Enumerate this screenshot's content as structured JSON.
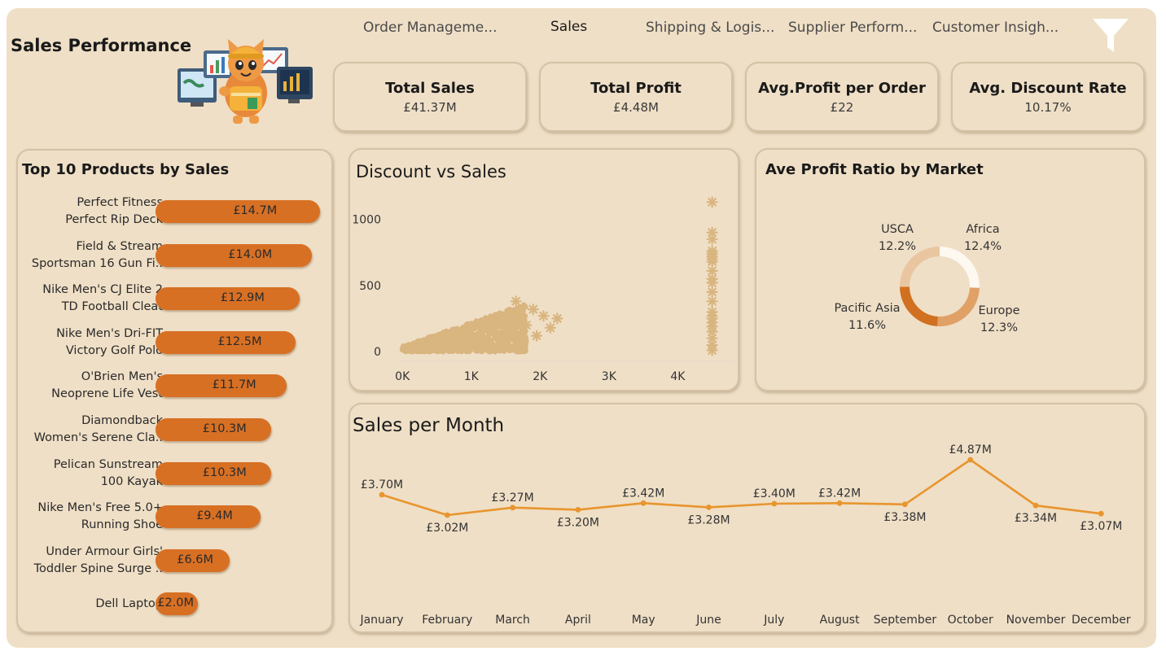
{
  "header": {
    "title": "Sales Performance",
    "tabs": [
      {
        "label": "Order Manageme..."
      },
      {
        "label": "Sales"
      },
      {
        "label": "Shipping & Logis..."
      },
      {
        "label": "Supplier Perform..."
      },
      {
        "label": "Customer Insigh..."
      }
    ],
    "active_tab": "Sales",
    "filter_icon": "filter-icon",
    "mascot_icon": "cat-analyst-illustration"
  },
  "kpis": [
    {
      "label": "Total Sales",
      "value": "£41.37M"
    },
    {
      "label": "Total Profit",
      "value": "£4.48M"
    },
    {
      "label": "Avg.Profit per Order",
      "value": "£22"
    },
    {
      "label": "Avg. Discount Rate",
      "value": "10.17%"
    }
  ],
  "colors": {
    "background": "#efdfc6",
    "bar": "#d87024",
    "scatter": "#d9b57f",
    "line": "#e8952e",
    "donut": [
      "#fdf8f0",
      "#e0a066",
      "#d07020",
      "#e9c6a0"
    ]
  },
  "chart_data": [
    {
      "type": "bar",
      "title": "Top 10 Products by Sales",
      "orientation": "horizontal",
      "categories": [
        [
          "Perfect Fitness",
          "Perfect Rip Deck"
        ],
        [
          "Field & Stream",
          "Sportsman 16 Gun Fi.."
        ],
        [
          "Nike Men's CJ Elite 2",
          "TD Football Cleat"
        ],
        [
          "Nike Men's Dri-FIT",
          "Victory Golf Polo"
        ],
        [
          "O'Brien Men's",
          "Neoprene Life Vest"
        ],
        [
          "Diamondback",
          "Women's Serene Cla.."
        ],
        [
          "Pelican Sunstream",
          "100 Kayak"
        ],
        [
          "Nike Men's Free 5.0+",
          "Running Shoe"
        ],
        [
          "Under Armour Girls'",
          "Toddler Spine Surge .."
        ],
        [
          "Dell Laptop"
        ]
      ],
      "values": [
        14.7,
        14.0,
        12.9,
        12.5,
        11.7,
        10.3,
        10.3,
        9.4,
        6.6,
        2.0
      ],
      "labels": [
        "£14.7M",
        "£14.0M",
        "£12.9M",
        "£12.5M",
        "£11.7M",
        "£10.3M",
        "£10.3M",
        "£9.4M",
        "£6.6M",
        "£2.0M"
      ],
      "unit": "£M"
    },
    {
      "type": "scatter",
      "title": "Discount vs Sales",
      "xlim": [
        -50,
        4800
      ],
      "ylim": [
        -30,
        1150
      ],
      "xticks": [
        0,
        1000,
        2000,
        3000,
        4000
      ],
      "xtick_labels": [
        "0K",
        "1K",
        "2K",
        "3K",
        "4K"
      ],
      "yticks": [
        0,
        500,
        1000
      ],
      "ytick_labels": [
        "0",
        "500",
        "1000"
      ],
      "marker": "asterisk",
      "main_cloud": {
        "x_range": [
          0,
          2500
        ],
        "y_range": [
          0,
          400
        ]
      },
      "outlier_points": [
        {
          "x": 4500,
          "y": 1130
        },
        {
          "x": 4500,
          "y": 900
        },
        {
          "x": 4500,
          "y": 850
        },
        {
          "x": 4500,
          "y": 760
        },
        {
          "x": 4500,
          "y": 740
        },
        {
          "x": 4500,
          "y": 720
        },
        {
          "x": 4500,
          "y": 700
        },
        {
          "x": 4500,
          "y": 680
        },
        {
          "x": 4500,
          "y": 610
        },
        {
          "x": 4500,
          "y": 550
        },
        {
          "x": 4500,
          "y": 520
        },
        {
          "x": 4500,
          "y": 450
        },
        {
          "x": 4500,
          "y": 380
        },
        {
          "x": 4500,
          "y": 300
        },
        {
          "x": 4500,
          "y": 270
        },
        {
          "x": 4500,
          "y": 250
        },
        {
          "x": 4500,
          "y": 220
        },
        {
          "x": 4500,
          "y": 190
        },
        {
          "x": 4500,
          "y": 150
        },
        {
          "x": 4500,
          "y": 100
        },
        {
          "x": 4500,
          "y": 50
        },
        {
          "x": 4500,
          "y": 10
        },
        {
          "x": 1650,
          "y": 380
        },
        {
          "x": 1900,
          "y": 320
        },
        {
          "x": 2050,
          "y": 270
        },
        {
          "x": 2250,
          "y": 250
        },
        {
          "x": 1800,
          "y": 200
        },
        {
          "x": 2150,
          "y": 180
        },
        {
          "x": 1950,
          "y": 120
        },
        {
          "x": 1750,
          "y": 60
        },
        {
          "x": 1350,
          "y": 20
        }
      ]
    },
    {
      "type": "pie",
      "title": "Ave Profit Ratio by Market",
      "donut": true,
      "categories": [
        "Africa",
        "Europe",
        "Pacific Asia",
        "USCA"
      ],
      "values": [
        12.4,
        12.3,
        11.6,
        12.2
      ],
      "labels": [
        "12.4%",
        "12.3%",
        "11.6%",
        "12.2%"
      ]
    },
    {
      "type": "line",
      "title": "Sales per Month",
      "categories": [
        "January",
        "February",
        "March",
        "April",
        "May",
        "June",
        "July",
        "August",
        "September",
        "October",
        "November",
        "December"
      ],
      "values": [
        3.7,
        3.02,
        3.27,
        3.2,
        3.42,
        3.28,
        3.4,
        3.42,
        3.38,
        4.87,
        3.34,
        3.07
      ],
      "labels": [
        "£3.70M",
        "£3.02M",
        "£3.27M",
        "£3.20M",
        "£3.42M",
        "£3.28M",
        "£3.40M",
        "£3.42M",
        "£3.38M",
        "£4.87M",
        "£3.34M",
        "£3.07M"
      ],
      "label_positions": [
        "above",
        "below",
        "above",
        "below",
        "above",
        "below",
        "above",
        "above",
        "below",
        "above",
        "below",
        "below"
      ],
      "unit": "£M"
    }
  ]
}
